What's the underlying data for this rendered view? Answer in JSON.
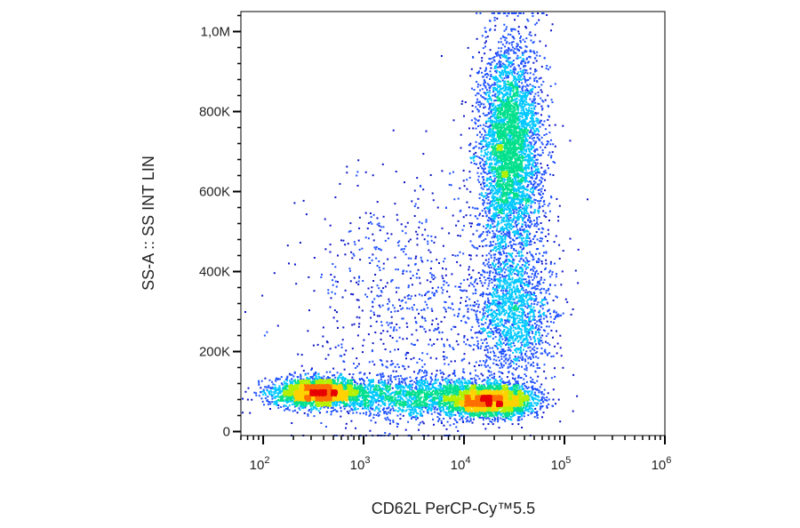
{
  "chart_data": {
    "type": "scatter",
    "subtype": "density-colored flow cytometry dot plot",
    "title": "",
    "xlabel": "CD62L PerCP-Cy™5.5",
    "ylabel": "SS-A :: SS INT LIN",
    "x_scale": "log",
    "y_scale": "linear",
    "xlim": [
      60,
      1000000
    ],
    "ylim": [
      -10000,
      1050000
    ],
    "x_ticks": [
      {
        "value": 100,
        "base": "10",
        "exp": "2"
      },
      {
        "value": 1000,
        "base": "10",
        "exp": "3"
      },
      {
        "value": 10000,
        "base": "10",
        "exp": "4"
      },
      {
        "value": 100000,
        "base": "10",
        "exp": "5"
      },
      {
        "value": 1000000,
        "base": "10",
        "exp": "6"
      }
    ],
    "y_ticks": [
      {
        "value": 0,
        "label": "0"
      },
      {
        "value": 200000,
        "label": "200K"
      },
      {
        "value": 400000,
        "label": "400K"
      },
      {
        "value": 600000,
        "label": "600K"
      },
      {
        "value": 800000,
        "label": "800K"
      },
      {
        "value": 1000000,
        "label": "1,0M"
      }
    ],
    "grid": false,
    "colormap": [
      "#0a14c8",
      "#1e50ff",
      "#00c8ff",
      "#00e08c",
      "#b4f000",
      "#ffd200",
      "#ff6e00",
      "#e60000"
    ],
    "populations": [
      {
        "name": "",
        "x_center": 350,
        "y_center": 100000,
        "x_spread_decades": 0.22,
        "y_spread": 18000,
        "n": 2600
      },
      {
        "name": "",
        "x_center": 18000,
        "y_center": 80000,
        "x_spread_decades": 0.22,
        "y_spread": 20000,
        "n": 2800
      },
      {
        "name": "",
        "x_center": 3000,
        "y_center": 90000,
        "x_spread_decades": 0.45,
        "y_spread": 25000,
        "n": 1600
      },
      {
        "name": "",
        "x_center": 28000,
        "y_center": 700000,
        "x_spread_decades": 0.16,
        "y_spread": 140000,
        "n": 4200
      },
      {
        "name": "",
        "x_center": 30000,
        "y_center": 300000,
        "x_spread_decades": 0.2,
        "y_spread": 80000,
        "n": 1500
      },
      {
        "name": "",
        "x_center": 3000,
        "y_center": 300000,
        "x_spread_decades": 0.55,
        "y_spread": 170000,
        "n": 900
      }
    ]
  }
}
